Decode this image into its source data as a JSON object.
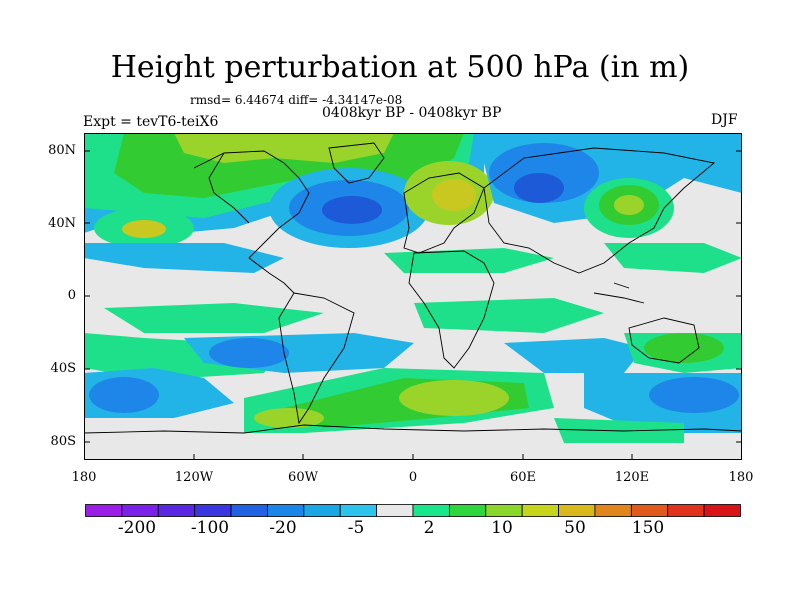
{
  "title": "Height perturbation at 500 hPa (in m)",
  "stats": "rmsd= 6.44674 diff= -4.34147e-08",
  "experiment": "Expt = tevT6-teiX6",
  "period": "0408kyr BP - 0408kyr BP",
  "season": "DJF",
  "lat_labels": [
    "80N",
    "40N",
    "0",
    "40S",
    "80S"
  ],
  "lon_labels": [
    "180",
    "120W",
    "60W",
    "0",
    "60E",
    "120E",
    "180"
  ],
  "legend": {
    "labels": [
      "-200",
      "-100",
      "-20",
      "-5",
      "2",
      "10",
      "50",
      "150"
    ],
    "colors": [
      "#9a1ee6",
      "#7a22e8",
      "#5a28e2",
      "#3a36e0",
      "#2062e2",
      "#1b86ea",
      "#1ba6e6",
      "#2ec3ea",
      "#e8e8e8",
      "#19e68a",
      "#2ed63c",
      "#8ad62a",
      "#c6d41c",
      "#d8b81a",
      "#e0861c",
      "#e05a1c",
      "#e0321c",
      "#d81418"
    ]
  },
  "colors": {
    "neutral": "#e8e8e8",
    "blue_dark": "#1c5ad8",
    "blue_mid": "#1e86e8",
    "blue_light": "#22b4e6",
    "green_light": "#1ee08a",
    "green": "#32cc32",
    "yellow_green": "#9ad42a",
    "yellow": "#c8c820"
  }
}
